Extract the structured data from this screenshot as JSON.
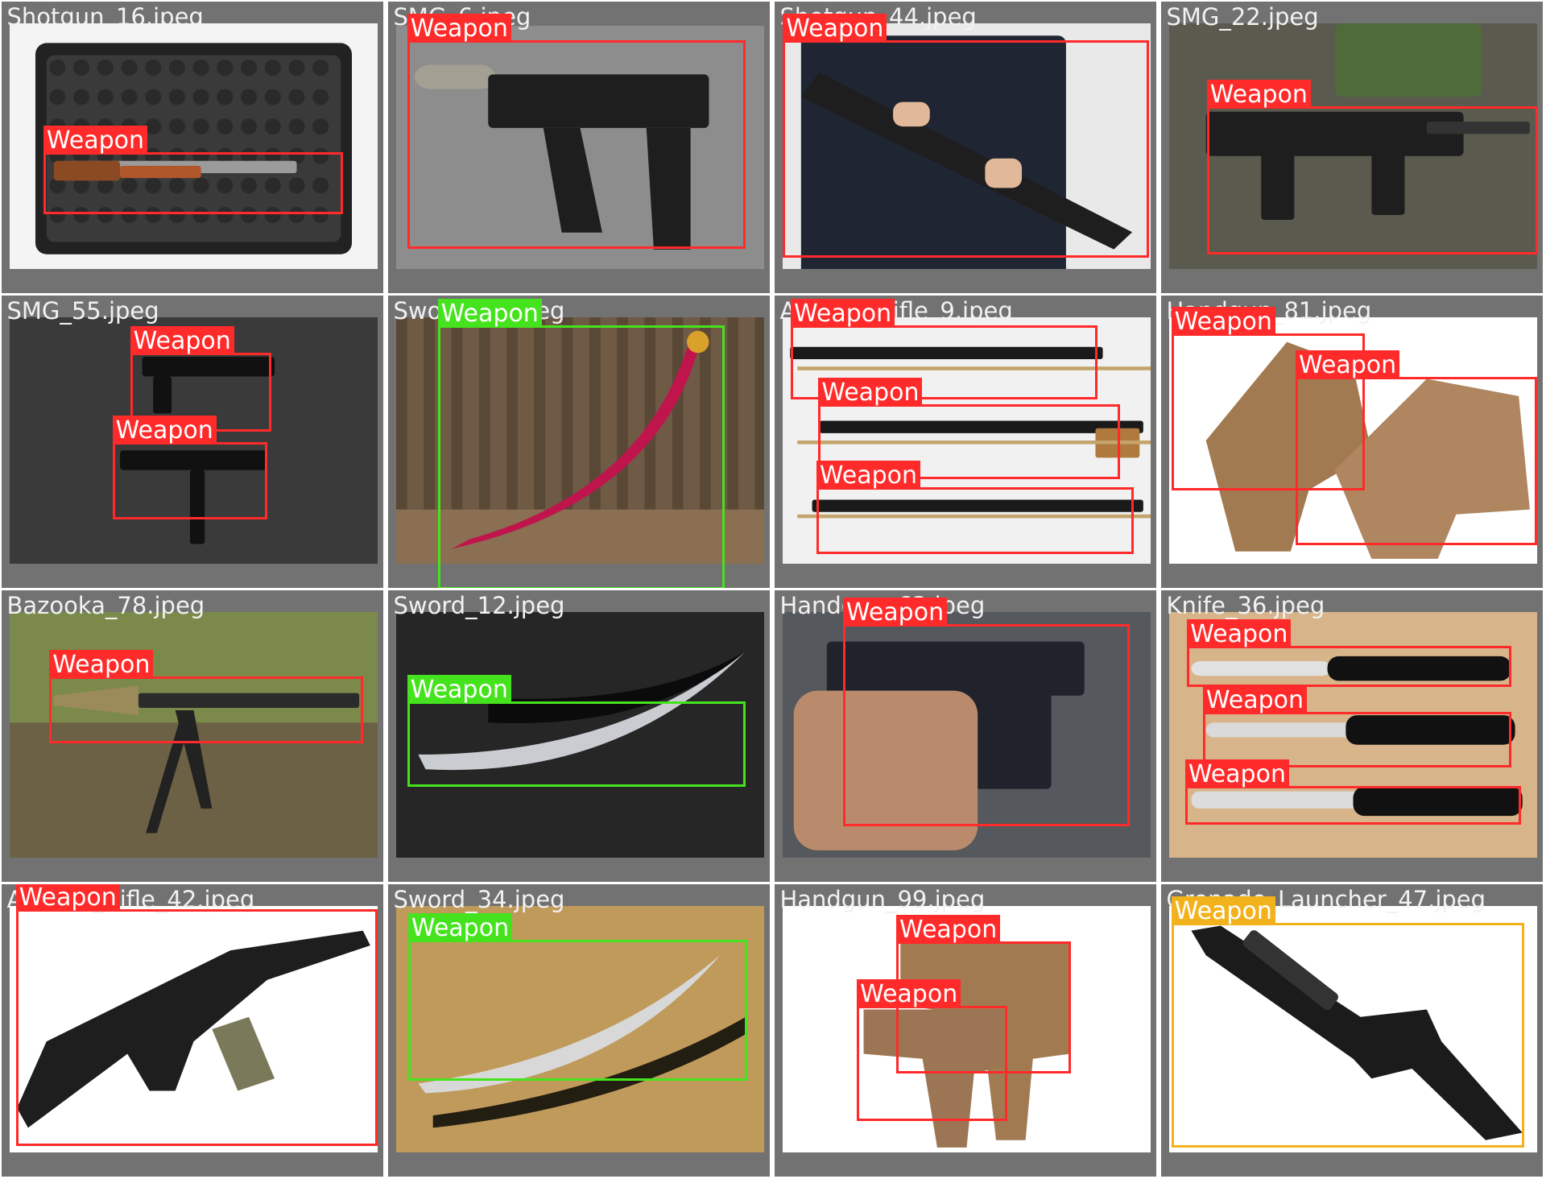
{
  "grid": {
    "label_colors": {
      "red": "#ff2a2a",
      "green": "#45e31d",
      "yellow": "#f2b21b"
    },
    "tiles": [
      {
        "filename": "Shotgun_16.jpeg",
        "scene": "shotgun in foam-lined case",
        "photo_bg": "#f4f4f4",
        "boxes": [
          {
            "label": "Weapon",
            "color": "red"
          }
        ]
      },
      {
        "filename": "SMG_6.jpeg",
        "scene": "suppressed submachine gun on grey",
        "photo_bg": "#8d8d8d",
        "boxes": [
          {
            "label": "Weapon",
            "color": "red"
          }
        ]
      },
      {
        "filename": "Shotgun_44.jpeg",
        "scene": "officer holding shotgun",
        "photo_bg": "#e9e9ea",
        "boxes": [
          {
            "label": "Weapon",
            "color": "red"
          }
        ]
      },
      {
        "filename": "SMG_22.jpeg",
        "scene": "man holding compact SMG at expo",
        "photo_bg": "#6f6c60",
        "boxes": [
          {
            "label": "Weapon",
            "color": "red"
          }
        ]
      },
      {
        "filename": "SMG_55.jpeg",
        "scene": "two machine pistols on dark wall",
        "photo_bg": "#3a3a3a",
        "boxes": [
          {
            "label": "Weapon",
            "color": "red"
          },
          {
            "label": "Weapon",
            "color": "red"
          }
        ]
      },
      {
        "filename": "Sword_20.jpeg",
        "scene": "curved sword in red scabbard",
        "photo_bg": "#7d6a55",
        "boxes": [
          {
            "label": "Weapon",
            "color": "green"
          }
        ]
      },
      {
        "filename": "Assault_Rifle_9.jpeg",
        "scene": "three rifles on wall rack",
        "photo_bg": "#f1f1f1",
        "boxes": [
          {
            "label": "Weapon",
            "color": "red"
          },
          {
            "label": "Weapon",
            "color": "red"
          },
          {
            "label": "Weapon",
            "color": "red"
          }
        ]
      },
      {
        "filename": "Handgun_81.jpeg",
        "scene": "two tan pistols",
        "photo_bg": "#ffffff",
        "boxes": [
          {
            "label": "Weapon",
            "color": "red"
          },
          {
            "label": "Weapon",
            "color": "red"
          }
        ]
      },
      {
        "filename": "Bazooka_78.jpeg",
        "scene": "rocket launcher on bipod outdoors",
        "photo_bg": "#6e7a45",
        "boxes": [
          {
            "label": "Weapon",
            "color": "red"
          }
        ]
      },
      {
        "filename": "Sword_12.jpeg",
        "scene": "curved sword and scabbard on black",
        "photo_bg": "#262626",
        "boxes": [
          {
            "label": "Weapon",
            "color": "green"
          }
        ]
      },
      {
        "filename": "Handgun_63.jpeg",
        "scene": "hand holding black pistol",
        "photo_bg": "#55585c",
        "boxes": [
          {
            "label": "Weapon",
            "color": "red"
          }
        ]
      },
      {
        "filename": "Knife_36.jpeg",
        "scene": "three kitchen knives on wood",
        "photo_bg": "#d8b48a",
        "boxes": [
          {
            "label": "Weapon",
            "color": "red"
          },
          {
            "label": "Weapon",
            "color": "red"
          },
          {
            "label": "Weapon",
            "color": "red"
          }
        ]
      },
      {
        "filename": "Assault_Rifle_42.jpeg",
        "scene": "black assault rifle",
        "photo_bg": "#ffffff",
        "boxes": [
          {
            "label": "Weapon",
            "color": "red"
          }
        ]
      },
      {
        "filename": "Sword_34.jpeg",
        "scene": "sword and scabbard on gold",
        "photo_bg": "#c09a5a",
        "boxes": [
          {
            "label": "Weapon",
            "color": "green"
          }
        ]
      },
      {
        "filename": "Handgun_99.jpeg",
        "scene": "two tan pistols overlapping",
        "photo_bg": "#ffffff",
        "boxes": [
          {
            "label": "Weapon",
            "color": "red"
          },
          {
            "label": "Weapon",
            "color": "red"
          }
        ]
      },
      {
        "filename": "Grenade_Launcher_47.jpeg",
        "scene": "rifle with underbarrel launcher",
        "photo_bg": "#ffffff",
        "boxes": [
          {
            "label": "Weapon",
            "color": "yellow"
          }
        ]
      }
    ]
  }
}
